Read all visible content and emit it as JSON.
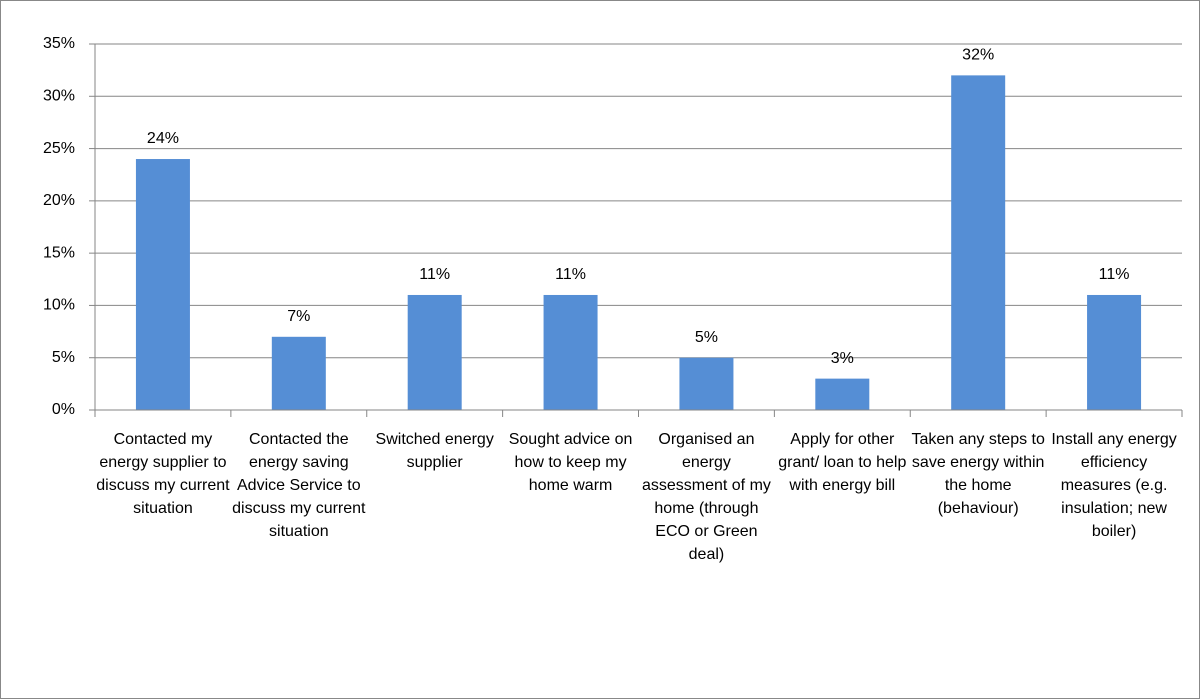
{
  "chart_data": {
    "type": "bar",
    "categories": [
      "Contacted my energy supplier to discuss my current situation",
      "Contacted the energy saving Advice Service to discuss my current situation",
      "Switched energy supplier",
      "Sought advice on how to keep my home warm",
      "Organised an energy assessment of my home (through ECO or Green deal)",
      "Apply for other grant/ loan to help with energy bill",
      "Taken any steps to save energy within the home (behaviour)",
      "Install any energy efficiency measures (e.g. insulation; new boiler)"
    ],
    "values": [
      24,
      7,
      11,
      11,
      5,
      3,
      32,
      11
    ],
    "value_labels": [
      "24%",
      "7%",
      "11%",
      "11%",
      "5%",
      "3%",
      "32%",
      "11%"
    ],
    "color": "#558ed5",
    "ylim": [
      0,
      35
    ],
    "yticks": [
      {
        "value": 0,
        "label": "0%"
      },
      {
        "value": 5,
        "label": "5%"
      },
      {
        "value": 10,
        "label": "10%"
      },
      {
        "value": 15,
        "label": "15%"
      },
      {
        "value": 20,
        "label": "20%"
      },
      {
        "value": 25,
        "label": "25%"
      },
      {
        "value": 30,
        "label": "30%"
      },
      {
        "value": 35,
        "label": "35%"
      }
    ],
    "grid": true
  }
}
